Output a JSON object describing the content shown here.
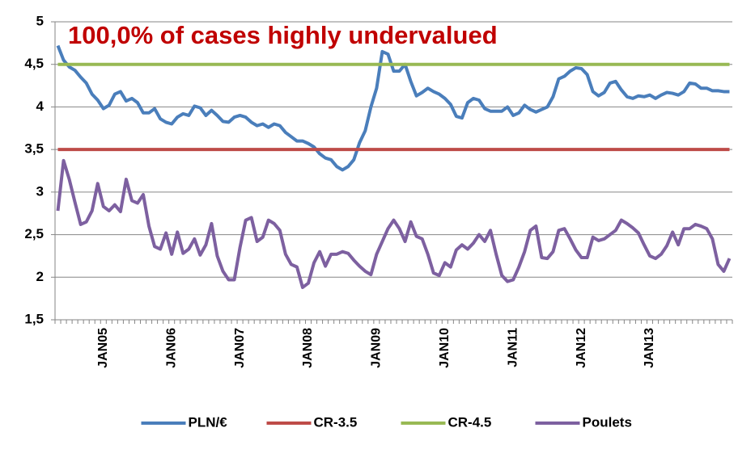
{
  "chart_data": {
    "type": "line",
    "annotation": "100,0% of cases highly undervalued",
    "categories": [
      null,
      null,
      null,
      null,
      null,
      null,
      null,
      null,
      "JAN05",
      null,
      null,
      null,
      null,
      null,
      null,
      null,
      null,
      null,
      null,
      null,
      "JAN06",
      null,
      null,
      null,
      null,
      null,
      null,
      null,
      null,
      null,
      null,
      null,
      "JAN07",
      null,
      null,
      null,
      null,
      null,
      null,
      null,
      null,
      null,
      null,
      null,
      "JAN08",
      null,
      null,
      null,
      null,
      null,
      null,
      null,
      null,
      null,
      null,
      null,
      "JAN09",
      null,
      null,
      null,
      null,
      null,
      null,
      null,
      null,
      null,
      null,
      null,
      "JAN10",
      null,
      null,
      null,
      null,
      null,
      null,
      null,
      null,
      null,
      null,
      null,
      "JAN11",
      null,
      null,
      null,
      null,
      null,
      null,
      null,
      null,
      null,
      null,
      null,
      "JAN12",
      null,
      null,
      null,
      null,
      null,
      null,
      null,
      null,
      null,
      null,
      null,
      "JAN13",
      null,
      null,
      null,
      null,
      null,
      null,
      null,
      null,
      null,
      null,
      null,
      null,
      null,
      null
    ],
    "series": [
      {
        "name": "PLN/€",
        "color": "#4a7ebb",
        "values": [
          4.72,
          4.55,
          4.47,
          4.43,
          4.35,
          4.28,
          4.15,
          4.08,
          3.98,
          4.02,
          4.15,
          4.18,
          4.07,
          4.1,
          4.05,
          3.93,
          3.93,
          3.98,
          3.86,
          3.82,
          3.8,
          3.88,
          3.92,
          3.9,
          4.01,
          3.99,
          3.9,
          3.96,
          3.9,
          3.83,
          3.82,
          3.88,
          3.9,
          3.88,
          3.82,
          3.78,
          3.8,
          3.76,
          3.8,
          3.78,
          3.7,
          3.65,
          3.6,
          3.6,
          3.57,
          3.53,
          3.45,
          3.4,
          3.38,
          3.3,
          3.26,
          3.3,
          3.38,
          3.58,
          3.72,
          4.0,
          4.22,
          4.65,
          4.62,
          4.42,
          4.42,
          4.5,
          4.3,
          4.13,
          4.17,
          4.22,
          4.18,
          4.15,
          4.1,
          4.03,
          3.89,
          3.87,
          4.05,
          4.1,
          4.08,
          3.98,
          3.95,
          3.95,
          3.95,
          4.0,
          3.9,
          3.93,
          4.02,
          3.97,
          3.94,
          3.97,
          4.0,
          4.12,
          4.33,
          4.36,
          4.42,
          4.46,
          4.45,
          4.38,
          4.18,
          4.13,
          4.17,
          4.28,
          4.3,
          4.2,
          4.12,
          4.1,
          4.13,
          4.12,
          4.14,
          4.1,
          4.14,
          4.17,
          4.16,
          4.14,
          4.18,
          4.28,
          4.27,
          4.22,
          4.22,
          4.19,
          4.19,
          4.18,
          4.18
        ]
      },
      {
        "name": "CR-3.5",
        "color": "#be4b48",
        "values": [
          3.5,
          3.5,
          3.5,
          3.5,
          3.5,
          3.5,
          3.5,
          3.5,
          3.5,
          3.5,
          3.5,
          3.5,
          3.5,
          3.5,
          3.5,
          3.5,
          3.5,
          3.5,
          3.5,
          3.5,
          3.5,
          3.5,
          3.5,
          3.5,
          3.5,
          3.5,
          3.5,
          3.5,
          3.5,
          3.5,
          3.5,
          3.5,
          3.5,
          3.5,
          3.5,
          3.5,
          3.5,
          3.5,
          3.5,
          3.5,
          3.5,
          3.5,
          3.5,
          3.5,
          3.5,
          3.5,
          3.5,
          3.5,
          3.5,
          3.5,
          3.5,
          3.5,
          3.5,
          3.5,
          3.5,
          3.5,
          3.5,
          3.5,
          3.5,
          3.5,
          3.5,
          3.5,
          3.5,
          3.5,
          3.5,
          3.5,
          3.5,
          3.5,
          3.5,
          3.5,
          3.5,
          3.5,
          3.5,
          3.5,
          3.5,
          3.5,
          3.5,
          3.5,
          3.5,
          3.5,
          3.5,
          3.5,
          3.5,
          3.5,
          3.5,
          3.5,
          3.5,
          3.5,
          3.5,
          3.5,
          3.5,
          3.5,
          3.5,
          3.5,
          3.5,
          3.5,
          3.5,
          3.5,
          3.5,
          3.5,
          3.5,
          3.5,
          3.5,
          3.5,
          3.5,
          3.5,
          3.5,
          3.5,
          3.5,
          3.5,
          3.5,
          3.5,
          3.5,
          3.5,
          3.5,
          3.5,
          3.5,
          3.5,
          3.5
        ]
      },
      {
        "name": "CR-4.5",
        "color": "#98b954",
        "values": [
          4.5,
          4.5,
          4.5,
          4.5,
          4.5,
          4.5,
          4.5,
          4.5,
          4.5,
          4.5,
          4.5,
          4.5,
          4.5,
          4.5,
          4.5,
          4.5,
          4.5,
          4.5,
          4.5,
          4.5,
          4.5,
          4.5,
          4.5,
          4.5,
          4.5,
          4.5,
          4.5,
          4.5,
          4.5,
          4.5,
          4.5,
          4.5,
          4.5,
          4.5,
          4.5,
          4.5,
          4.5,
          4.5,
          4.5,
          4.5,
          4.5,
          4.5,
          4.5,
          4.5,
          4.5,
          4.5,
          4.5,
          4.5,
          4.5,
          4.5,
          4.5,
          4.5,
          4.5,
          4.5,
          4.5,
          4.5,
          4.5,
          4.5,
          4.5,
          4.5,
          4.5,
          4.5,
          4.5,
          4.5,
          4.5,
          4.5,
          4.5,
          4.5,
          4.5,
          4.5,
          4.5,
          4.5,
          4.5,
          4.5,
          4.5,
          4.5,
          4.5,
          4.5,
          4.5,
          4.5,
          4.5,
          4.5,
          4.5,
          4.5,
          4.5,
          4.5,
          4.5,
          4.5,
          4.5,
          4.5,
          4.5,
          4.5,
          4.5,
          4.5,
          4.5,
          4.5,
          4.5,
          4.5,
          4.5,
          4.5,
          4.5,
          4.5,
          4.5,
          4.5,
          4.5,
          4.5,
          4.5,
          4.5,
          4.5,
          4.5,
          4.5,
          4.5,
          4.5,
          4.5,
          4.5,
          4.5,
          4.5,
          4.5,
          4.5
        ]
      },
      {
        "name": "Poulets",
        "color": "#7d60a0",
        "values": [
          2.78,
          3.37,
          3.15,
          2.88,
          2.62,
          2.65,
          2.78,
          3.1,
          2.83,
          2.78,
          2.85,
          2.77,
          3.15,
          2.9,
          2.87,
          2.97,
          2.6,
          2.36,
          2.33,
          2.52,
          2.27,
          2.53,
          2.28,
          2.33,
          2.45,
          2.26,
          2.38,
          2.63,
          2.25,
          2.07,
          1.97,
          1.97,
          2.35,
          2.67,
          2.7,
          2.42,
          2.47,
          2.67,
          2.63,
          2.55,
          2.27,
          2.15,
          2.12,
          1.88,
          1.93,
          2.17,
          2.3,
          2.13,
          2.27,
          2.27,
          2.3,
          2.28,
          2.2,
          2.13,
          2.07,
          2.03,
          2.27,
          2.42,
          2.57,
          2.67,
          2.57,
          2.42,
          2.65,
          2.48,
          2.45,
          2.27,
          2.05,
          2.02,
          2.17,
          2.12,
          2.32,
          2.38,
          2.33,
          2.4,
          2.5,
          2.42,
          2.55,
          2.27,
          2.02,
          1.95,
          1.97,
          2.12,
          2.3,
          2.55,
          2.6,
          2.23,
          2.22,
          2.3,
          2.55,
          2.57,
          2.45,
          2.32,
          2.23,
          2.23,
          2.47,
          2.43,
          2.45,
          2.5,
          2.55,
          2.67,
          2.63,
          2.58,
          2.52,
          2.38,
          2.25,
          2.22,
          2.27,
          2.37,
          2.53,
          2.38,
          2.57,
          2.57,
          2.62,
          2.6,
          2.57,
          2.45,
          2.15,
          2.07,
          2.22
        ]
      }
    ],
    "ylim": [
      1.5,
      5
    ],
    "yticks": [
      {
        "value": 1.5,
        "label": "1,5"
      },
      2,
      {
        "value": 2.5,
        "label": "2,5"
      },
      3,
      {
        "value": 3.5,
        "label": "3,5"
      },
      4,
      {
        "value": 4.5,
        "label": "4,5"
      },
      5
    ],
    "grid": true,
    "legend": "bottom"
  }
}
